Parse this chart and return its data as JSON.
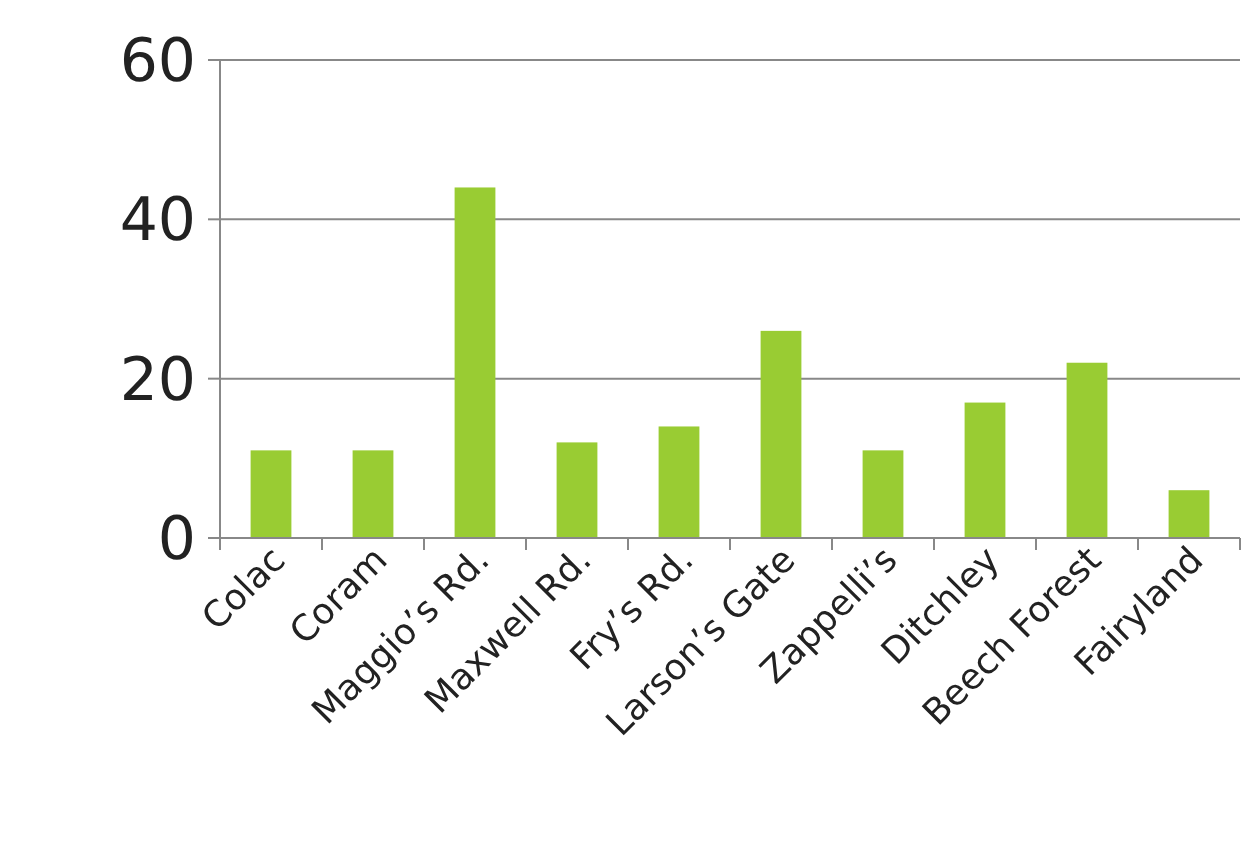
{
  "chart_data": {
    "type": "bar",
    "categories": [
      "Colac",
      "Coram",
      "Maggio’s Rd.",
      "Maxwell Rd.",
      "Fry’s Rd.",
      "Larson’s Gate",
      "Zappelli’s",
      "Ditchley",
      "Beech Forest",
      "Fairyland"
    ],
    "values": [
      11,
      11,
      44,
      12,
      14,
      26,
      11,
      17,
      22,
      6
    ],
    "color": "#99cc33",
    "ylim": [
      0,
      60
    ],
    "yticks": [
      0,
      20,
      40,
      60
    ],
    "grid": "y"
  }
}
